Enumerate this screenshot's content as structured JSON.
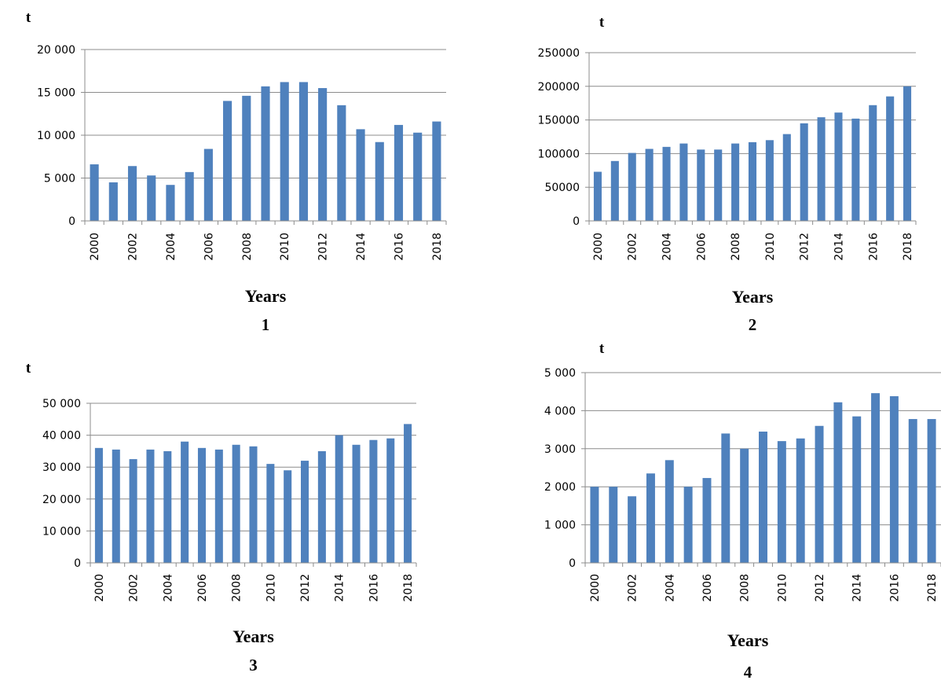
{
  "chart_data": [
    {
      "type": "bar",
      "panel_label": "1",
      "y_unit_label": "t",
      "xlabel": "Years",
      "categories": [
        "2000",
        "2001",
        "2002",
        "2003",
        "2004",
        "2005",
        "2006",
        "2007",
        "2008",
        "2009",
        "2010",
        "2011",
        "2012",
        "2013",
        "2014",
        "2015",
        "2016",
        "2017",
        "2018"
      ],
      "x_tick_labels": [
        "2000",
        "2002",
        "2004",
        "2006",
        "2008",
        "2010",
        "2012",
        "2014",
        "2016",
        "2018"
      ],
      "values": [
        6600,
        4500,
        6400,
        5300,
        4200,
        5700,
        8400,
        14000,
        14600,
        15700,
        16200,
        16200,
        15500,
        13500,
        10700,
        9200,
        11200,
        10300,
        11600
      ],
      "ylim": [
        0,
        20000
      ],
      "y_ticks": [
        0,
        5000,
        10000,
        15000,
        20000
      ],
      "y_tick_labels": [
        "0",
        "5 000",
        "10 000",
        "15 000",
        "20 000"
      ],
      "grid": true,
      "bar_color": "#4f81bd"
    },
    {
      "type": "bar",
      "panel_label": "2",
      "y_unit_label": "t",
      "xlabel": "Years",
      "categories": [
        "2000",
        "2001",
        "2002",
        "2003",
        "2004",
        "2005",
        "2006",
        "2007",
        "2008",
        "2009",
        "2010",
        "2011",
        "2012",
        "2013",
        "2014",
        "2015",
        "2016",
        "2017",
        "2018"
      ],
      "x_tick_labels": [
        "2000",
        "2002",
        "2004",
        "2006",
        "2008",
        "2010",
        "2012",
        "2014",
        "2016",
        "2018"
      ],
      "values": [
        73000,
        89000,
        101000,
        107000,
        110000,
        115000,
        106000,
        106000,
        115000,
        117000,
        120000,
        129000,
        145000,
        154000,
        161000,
        152000,
        172000,
        185000,
        200000
      ],
      "ylim": [
        0,
        250000
      ],
      "y_ticks": [
        0,
        50000,
        100000,
        150000,
        200000,
        250000
      ],
      "y_tick_labels": [
        "0",
        "50000",
        "100000",
        "150000",
        "200000",
        "250000"
      ],
      "grid": true,
      "bar_color": "#4f81bd"
    },
    {
      "type": "bar",
      "panel_label": "3",
      "y_unit_label": "t",
      "xlabel": "Years",
      "categories": [
        "2000",
        "2001",
        "2002",
        "2003",
        "2004",
        "2005",
        "2006",
        "2007",
        "2008",
        "2009",
        "2010",
        "2011",
        "2012",
        "2013",
        "2014",
        "2015",
        "2016",
        "2017",
        "2018"
      ],
      "x_tick_labels": [
        "2000",
        "2002",
        "2004",
        "2006",
        "2008",
        "2010",
        "2012",
        "2014",
        "2016",
        "2018"
      ],
      "values": [
        36000,
        35500,
        32500,
        35500,
        35000,
        38000,
        36000,
        35500,
        37000,
        36500,
        31000,
        29000,
        32000,
        35000,
        40000,
        37000,
        38500,
        39000,
        43500
      ],
      "ylim": [
        0,
        50000
      ],
      "y_ticks": [
        0,
        10000,
        20000,
        30000,
        40000,
        50000
      ],
      "y_tick_labels": [
        "0",
        "10 000",
        "20 000",
        "30 000",
        "40 000",
        "50 000"
      ],
      "grid": true,
      "bar_color": "#4f81bd"
    },
    {
      "type": "bar",
      "panel_label": "4",
      "y_unit_label": "t",
      "xlabel": "Years",
      "categories": [
        "2000",
        "2001",
        "2002",
        "2003",
        "2004",
        "2005",
        "2006",
        "2007",
        "2008",
        "2009",
        "2010",
        "2011",
        "2012",
        "2013",
        "2014",
        "2015",
        "2016",
        "2017",
        "2018"
      ],
      "x_tick_labels": [
        "2000",
        "2002",
        "2004",
        "2006",
        "2008",
        "2010",
        "2012",
        "2014",
        "2016",
        "2018"
      ],
      "values": [
        2000,
        2000,
        1750,
        2350,
        2700,
        2000,
        2230,
        3400,
        3000,
        3450,
        3200,
        3270,
        3600,
        4220,
        3850,
        4460,
        4380,
        3780,
        3780
      ],
      "ylim": [
        0,
        5000
      ],
      "y_ticks": [
        0,
        1000,
        2000,
        3000,
        4000,
        5000
      ],
      "y_tick_labels": [
        "0",
        "1 000",
        "2 000",
        "3 000",
        "4 000",
        "5 000"
      ],
      "grid": true,
      "bar_color": "#4f81bd"
    }
  ]
}
